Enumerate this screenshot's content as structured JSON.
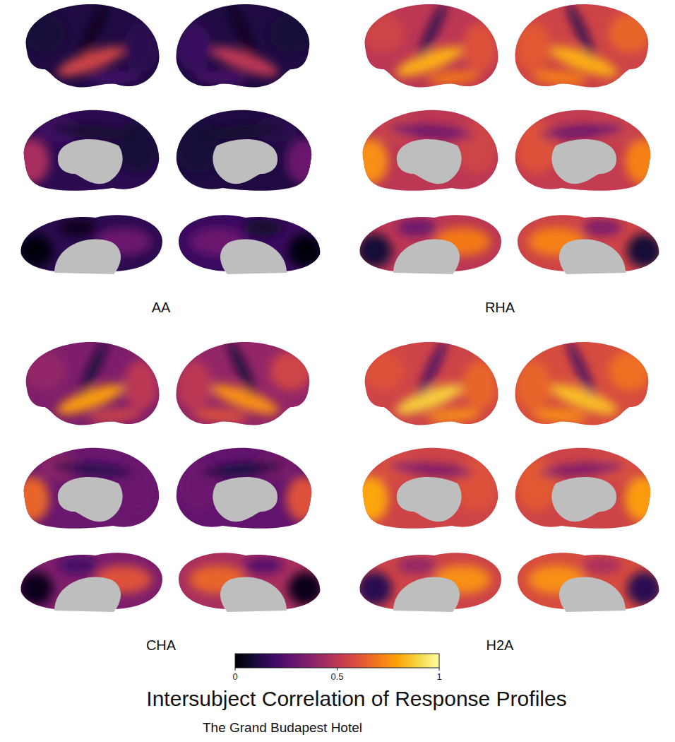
{
  "chart_data": {
    "type": "surface_map",
    "title": "Intersubject Correlation of Response Profiles",
    "subtitle": "The Grand Budapest Hotel",
    "colorbar_range": [
      0,
      1
    ],
    "colorbar_ticks": [
      0,
      0.5,
      1
    ],
    "panels": [
      {
        "label": "AA",
        "cells": [
          [
            0.12,
            0.55,
            0.05,
            0.15,
            0.1,
            0.2
          ],
          [
            0.12,
            0.5,
            0.05,
            0.18,
            0.1,
            0.22
          ],
          [
            0.15,
            0.45,
            0.2,
            0.1,
            0.08
          ],
          [
            0.12,
            0.3,
            0.15,
            0.1,
            0.08
          ],
          [
            0.15,
            0.02,
            0.3,
            0.05
          ],
          [
            0.18,
            0.02,
            0.3,
            0.08
          ]
        ]
      },
      {
        "label": "RHA",
        "cells": [
          [
            0.5,
            0.82,
            0.15,
            0.6,
            0.55,
            0.7
          ],
          [
            0.55,
            0.82,
            0.15,
            0.62,
            0.65,
            0.72
          ],
          [
            0.5,
            0.75,
            0.55,
            0.55,
            0.3
          ],
          [
            0.52,
            0.72,
            0.55,
            0.6,
            0.3
          ],
          [
            0.5,
            0.1,
            0.7,
            0.3
          ],
          [
            0.55,
            0.1,
            0.72,
            0.35
          ]
        ]
      },
      {
        "label": "CHA",
        "cells": [
          [
            0.35,
            0.78,
            0.1,
            0.5,
            0.4,
            0.55
          ],
          [
            0.4,
            0.75,
            0.1,
            0.5,
            0.55,
            0.6
          ],
          [
            0.3,
            0.65,
            0.4,
            0.3,
            0.15
          ],
          [
            0.28,
            0.6,
            0.35,
            0.3,
            0.12
          ],
          [
            0.35,
            0.05,
            0.6,
            0.2
          ],
          [
            0.45,
            0.05,
            0.65,
            0.25
          ]
        ]
      },
      {
        "label": "H2A",
        "cells": [
          [
            0.55,
            0.88,
            0.2,
            0.65,
            0.6,
            0.75
          ],
          [
            0.58,
            0.85,
            0.2,
            0.65,
            0.68,
            0.75
          ],
          [
            0.55,
            0.8,
            0.6,
            0.6,
            0.35
          ],
          [
            0.55,
            0.78,
            0.6,
            0.62,
            0.35
          ],
          [
            0.55,
            0.15,
            0.75,
            0.4
          ],
          [
            0.58,
            0.15,
            0.75,
            0.45
          ]
        ]
      }
    ]
  }
}
